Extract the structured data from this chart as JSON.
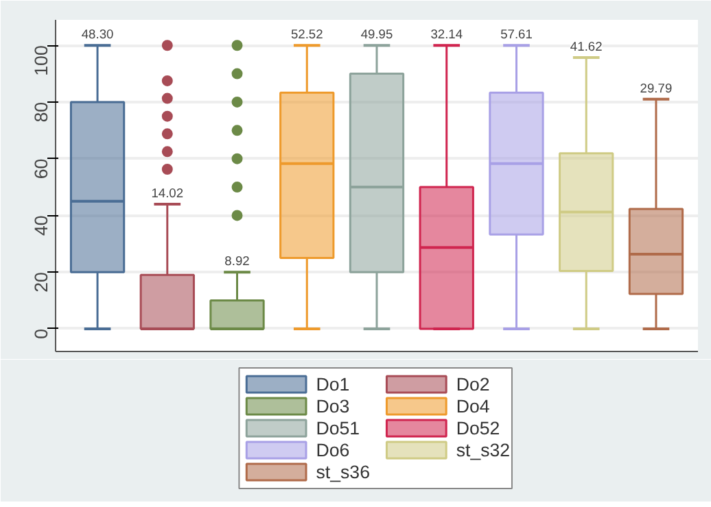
{
  "chart_data": {
    "type": "box",
    "categories": [
      null,
      null,
      null,
      null,
      null,
      null,
      null,
      null,
      null
    ],
    "series": [
      {
        "name": "Do1",
        "color": "#4a6d95",
        "boxes": [
          {
            "low": 0,
            "q1": 20,
            "median": 45,
            "q3": 80,
            "high": 100
          },
          null,
          null,
          null,
          null,
          null,
          null,
          null,
          null
        ]
      },
      {
        "name": "Do2",
        "color": "#a84c56",
        "boxes": [
          null,
          {
            "low": 0,
            "q1": 0,
            "median": 0,
            "q3": 19,
            "high": 44,
            "outliers": [
              100,
              87.5,
              81.3,
              75,
              68.8,
              62.5,
              56.3
            ]
          },
          null,
          null,
          null,
          null,
          null,
          null,
          null
        ]
      },
      {
        "name": "Do3",
        "color": "#6c8a47",
        "boxes": [
          null,
          null,
          {
            "low": 0,
            "q1": 0,
            "median": 0,
            "q3": 10,
            "high": 20,
            "outliers": [
              100,
              90,
              80,
              70,
              60,
              50,
              40
            ]
          },
          null,
          null,
          null,
          null,
          null,
          null
        ]
      },
      {
        "name": "Do4",
        "color": "#ee9a2c",
        "boxes": [
          null,
          null,
          null,
          {
            "low": 0,
            "q1": 25,
            "median": 58.3,
            "q3": 83.3,
            "high": 100
          },
          null,
          null,
          null,
          null,
          null
        ]
      },
      {
        "name": "Do51",
        "color": "#8da39b",
        "boxes": [
          null,
          null,
          null,
          null,
          {
            "low": 0,
            "q1": 20,
            "median": 50,
            "q3": 90,
            "high": 100
          },
          null,
          null,
          null,
          null
        ]
      },
      {
        "name": "Do52",
        "color": "#d0254f",
        "boxes": [
          null,
          null,
          null,
          null,
          null,
          {
            "low": 0,
            "q1": 0,
            "median": 28.7,
            "q3": 50,
            "high": 100
          },
          null,
          null,
          null
        ]
      },
      {
        "name": "Do6",
        "color": "#a8a0e6",
        "boxes": [
          null,
          null,
          null,
          null,
          null,
          null,
          {
            "low": 0,
            "q1": 33.3,
            "median": 58.3,
            "q3": 83.3,
            "high": 100
          },
          null,
          null
        ]
      },
      {
        "name": "st_s32",
        "color": "#cfcb85",
        "boxes": [
          null,
          null,
          null,
          null,
          null,
          null,
          null,
          {
            "low": 0,
            "q1": 20.4,
            "median": 41.2,
            "q3": 61.9,
            "high": 95.7
          },
          null
        ]
      },
      {
        "name": "st_s36",
        "color": "#b06b4a",
        "boxes": [
          null,
          null,
          null,
          null,
          null,
          null,
          null,
          null,
          {
            "low": 0,
            "q1": 12.3,
            "median": 26.3,
            "q3": 42.3,
            "high": 81
          }
        ]
      }
    ],
    "annotations": [
      "48.30",
      "14.02",
      "8.92",
      "52.52",
      "49.95",
      "32.14",
      "57.61",
      "41.62",
      "29.79"
    ],
    "ylim": [
      -8,
      109
    ],
    "yticks": [
      0,
      20,
      40,
      60,
      80,
      100
    ],
    "grid": "y",
    "legend": "bottom",
    "tick_labels": "y",
    "marker": "circle"
  }
}
